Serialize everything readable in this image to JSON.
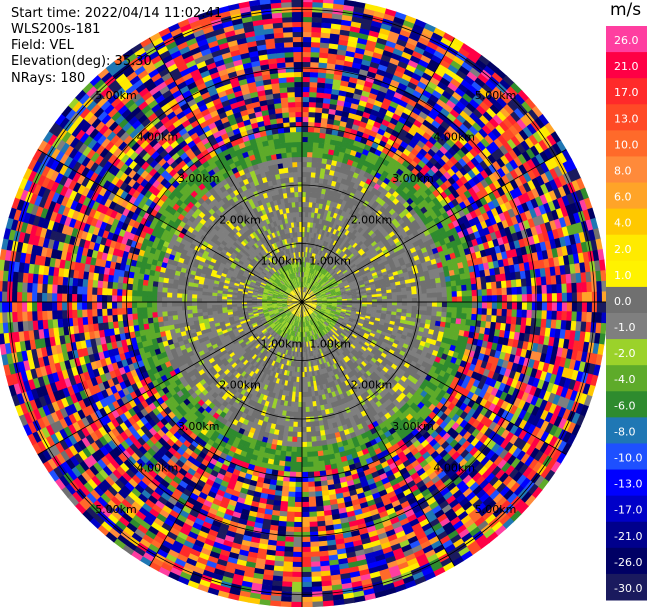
{
  "info": {
    "start_time": "Start time: 2022/04/14 11:02:41",
    "instrument": "WLS200s-181",
    "field": "Field: VEL",
    "elevation": "Elevation(deg): 35.30",
    "nrays": "NRays: 180"
  },
  "colorbar": {
    "unit": "m/s",
    "ticks": [
      "26.0",
      "21.0",
      "17.0",
      "13.0",
      "10.0",
      "8.0",
      "6.0",
      "4.0",
      "2.0",
      "1.0",
      "0.0",
      "-1.0",
      "-2.0",
      "-4.0",
      "-6.0",
      "-8.0",
      "-10.0",
      "-13.0",
      "-17.0",
      "-21.0",
      "-26.0",
      "-30.0"
    ],
    "colors": [
      "#ff3ea0",
      "#ff0045",
      "#ff2a2a",
      "#ff4a26",
      "#ff6a2a",
      "#ff8a3a",
      "#ffa428",
      "#ffc800",
      "#ffea00",
      "#fff200",
      "#707070",
      "#7f7f7f",
      "#9bd22a",
      "#5eab2a",
      "#2e8b2e",
      "#1f77b4",
      "#1e50ff",
      "#0000ff",
      "#0000c8",
      "#00008c",
      "#000064",
      "#1a1a5e"
    ]
  },
  "chart_data": {
    "type": "ppi",
    "field": "VEL",
    "unit": "m/s",
    "nrays": 180,
    "elevation_deg": 35.3,
    "range_rings_km": [
      "1.00km",
      "2.00km",
      "3.00km",
      "4.00km",
      "5.00km"
    ],
    "azimuth_spokes": 12,
    "value_range": [
      -30.0,
      26.0
    ],
    "velocity_zones": [
      {
        "r_km": [
          0.0,
          0.2
        ],
        "value": 1.5
      },
      {
        "r_km": [
          0.2,
          0.6
        ],
        "value": -2.0
      },
      {
        "r_km": [
          0.6,
          1.5
        ],
        "value": 0.0
      },
      {
        "r_km": [
          1.5,
          2.4
        ],
        "value": 0.0
      },
      {
        "r_km": [
          2.4,
          2.9
        ],
        "value": -4.0
      },
      {
        "r_km": [
          2.9,
          5.8
        ],
        "value": null
      }
    ]
  }
}
